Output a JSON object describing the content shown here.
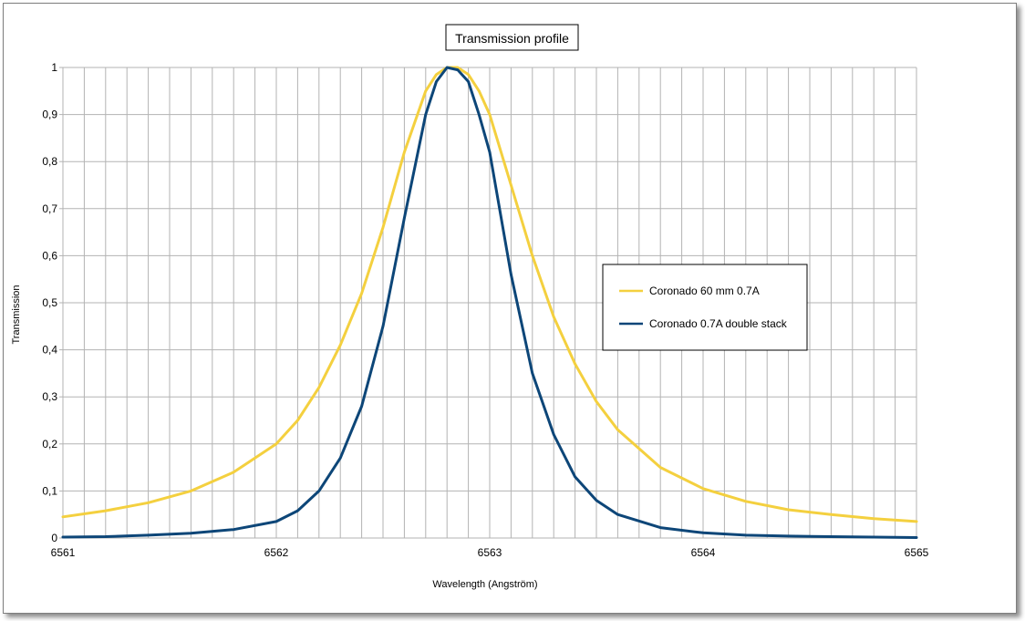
{
  "chart_data": {
    "type": "line",
    "title": "Transmission profile",
    "xlabel": "Wavelength (Angström)",
    "ylabel": "Transmission",
    "xlim": [
      6561,
      6565
    ],
    "ylim": [
      0,
      1
    ],
    "x_ticks": [
      "6561",
      "6562",
      "6563",
      "6564",
      "6565"
    ],
    "y_ticks": [
      "0",
      "0,1",
      "0,2",
      "0,3",
      "0,4",
      "0,5",
      "0,6",
      "0,7",
      "0,8",
      "0,9",
      "1"
    ],
    "grid": true,
    "legend_position": "right",
    "series": [
      {
        "name": "Coronado 60 mm 0.7A",
        "color": "#f4d03f",
        "x": [
          6561,
          6561.2,
          6561.4,
          6561.6,
          6561.8,
          6562,
          6562.1,
          6562.2,
          6562.3,
          6562.4,
          6562.5,
          6562.6,
          6562.7,
          6562.75,
          6562.8,
          6562.85,
          6562.9,
          6562.95,
          6563,
          6563.1,
          6563.2,
          6563.3,
          6563.4,
          6563.5,
          6563.6,
          6563.8,
          6564,
          6564.2,
          6564.4,
          6564.6,
          6564.8,
          6565
        ],
        "values": [
          0.045,
          0.058,
          0.075,
          0.1,
          0.14,
          0.2,
          0.25,
          0.32,
          0.41,
          0.52,
          0.66,
          0.82,
          0.95,
          0.985,
          1.0,
          1.0,
          0.985,
          0.95,
          0.9,
          0.75,
          0.6,
          0.47,
          0.37,
          0.29,
          0.23,
          0.15,
          0.105,
          0.078,
          0.06,
          0.05,
          0.041,
          0.035
        ]
      },
      {
        "name": "Coronado 0.7A double stack",
        "color": "#0d4678",
        "x": [
          6561,
          6561.2,
          6561.4,
          6561.6,
          6561.8,
          6562,
          6562.1,
          6562.2,
          6562.3,
          6562.4,
          6562.5,
          6562.6,
          6562.7,
          6562.75,
          6562.8,
          6562.85,
          6562.9,
          6562.95,
          6563,
          6563.1,
          6563.2,
          6563.3,
          6563.4,
          6563.5,
          6563.6,
          6563.8,
          6564,
          6564.2,
          6564.4,
          6564.6,
          6564.8,
          6565
        ],
        "values": [
          0.002,
          0.003,
          0.006,
          0.01,
          0.018,
          0.035,
          0.058,
          0.1,
          0.17,
          0.28,
          0.45,
          0.68,
          0.9,
          0.97,
          1.0,
          0.995,
          0.97,
          0.9,
          0.82,
          0.56,
          0.35,
          0.22,
          0.13,
          0.08,
          0.05,
          0.022,
          0.011,
          0.006,
          0.004,
          0.003,
          0.002,
          0.001
        ]
      }
    ]
  }
}
